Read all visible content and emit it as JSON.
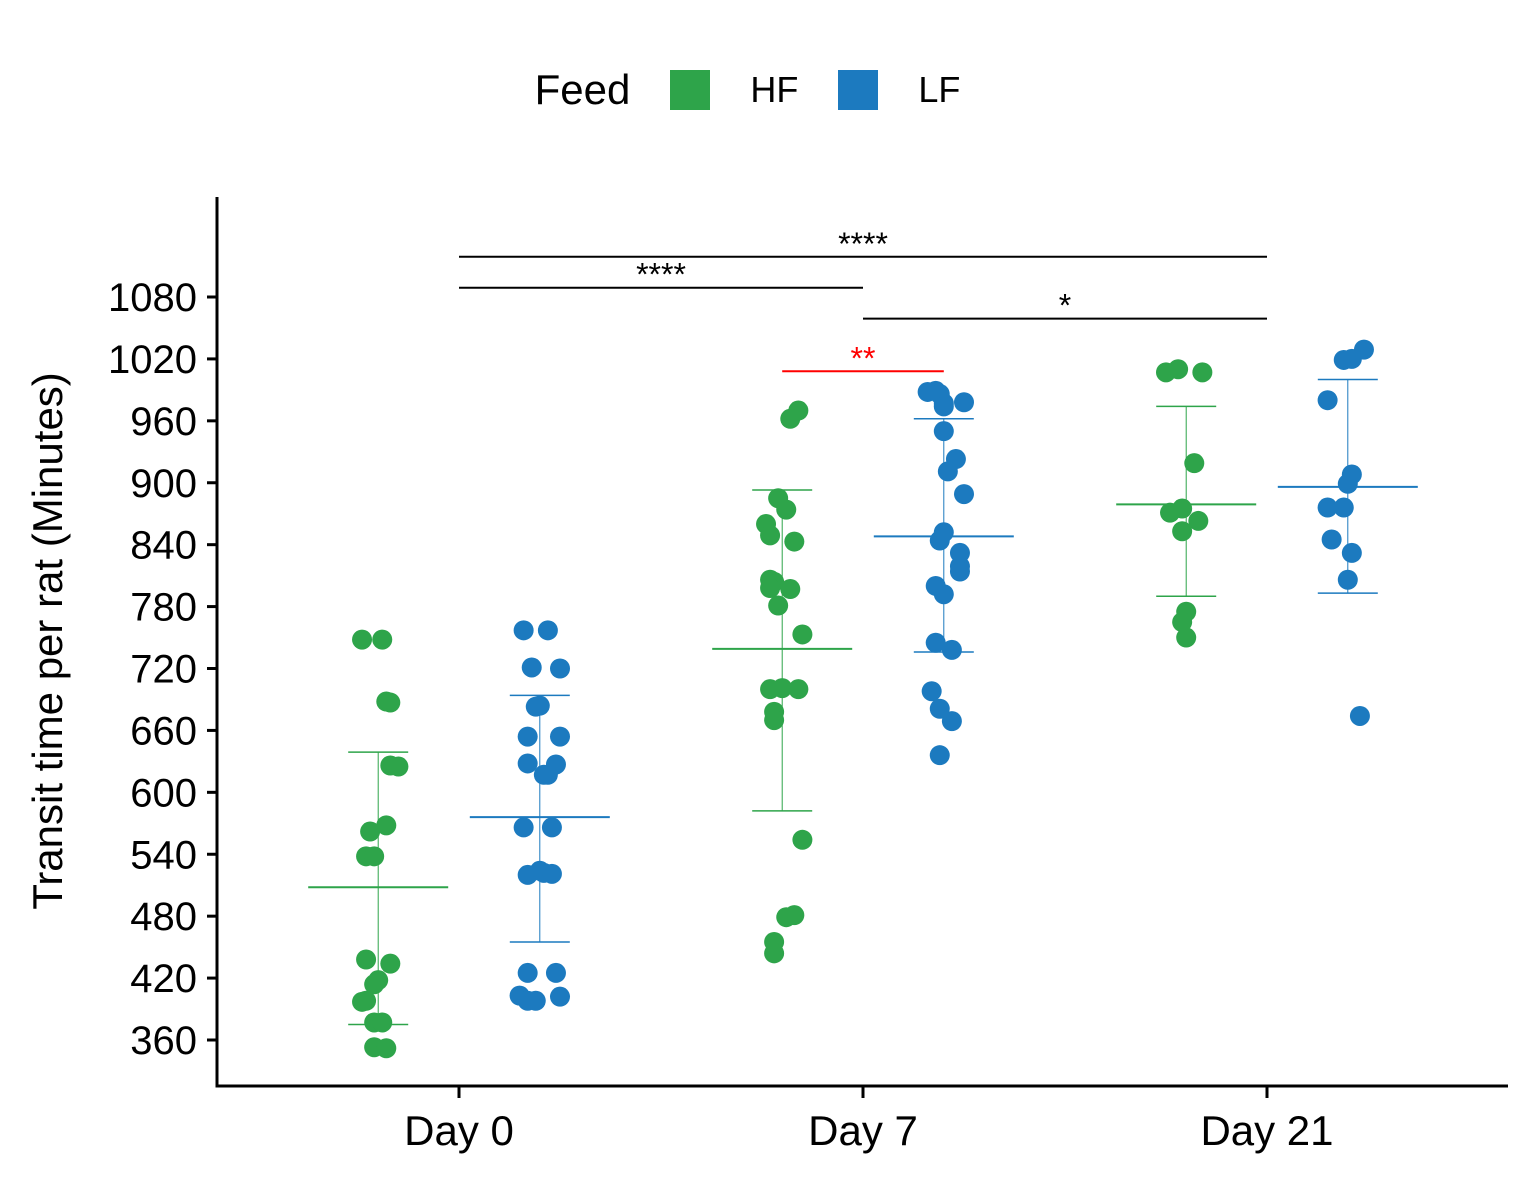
{
  "chart_data": {
    "type": "scatter",
    "ylabel": "Transit time per rat (Minutes)",
    "xlabel": "",
    "categories": [
      "Day 0",
      "Day 7",
      "Day 21"
    ],
    "yticks": [
      360,
      420,
      480,
      540,
      600,
      660,
      720,
      780,
      840,
      900,
      960,
      1020,
      1080
    ],
    "ylim": [
      315,
      1200
    ],
    "legend": {
      "title": "Feed",
      "placement": "top"
    },
    "series": [
      {
        "name": "HF",
        "color": "#2ea44a",
        "groups": [
          {
            "category": "Day 0",
            "mean": 508,
            "sd_low": 375,
            "sd_high": 639,
            "points": [
              [
                -0.24,
                748
              ],
              [
                -0.19,
                748
              ],
              [
                -0.18,
                688
              ],
              [
                -0.17,
                687
              ],
              [
                -0.17,
                626
              ],
              [
                -0.15,
                625
              ],
              [
                -0.18,
                568
              ],
              [
                -0.22,
                562
              ],
              [
                -0.23,
                538
              ],
              [
                -0.21,
                538
              ],
              [
                -0.23,
                438
              ],
              [
                -0.17,
                434
              ],
              [
                -0.2,
                418
              ],
              [
                -0.21,
                414
              ],
              [
                -0.23,
                398
              ],
              [
                -0.24,
                397
              ],
              [
                -0.21,
                377
              ],
              [
                -0.19,
                377
              ],
              [
                -0.21,
                353
              ],
              [
                -0.18,
                352
              ]
            ]
          },
          {
            "category": "Day 7",
            "mean": 739,
            "sd_low": 582,
            "sd_high": 893,
            "points": [
              [
                -0.16,
                970
              ],
              [
                -0.18,
                962
              ],
              [
                -0.21,
                885
              ],
              [
                -0.19,
                874
              ],
              [
                -0.24,
                860
              ],
              [
                -0.23,
                849
              ],
              [
                -0.17,
                843
              ],
              [
                -0.23,
                806
              ],
              [
                -0.22,
                804
              ],
              [
                -0.23,
                798
              ],
              [
                -0.18,
                797
              ],
              [
                -0.21,
                781
              ],
              [
                -0.15,
                753
              ],
              [
                -0.23,
                700
              ],
              [
                -0.2,
                701
              ],
              [
                -0.16,
                700
              ],
              [
                -0.22,
                678
              ],
              [
                -0.22,
                670
              ],
              [
                -0.15,
                554
              ],
              [
                -0.17,
                481
              ],
              [
                -0.19,
                479
              ],
              [
                -0.22,
                455
              ],
              [
                -0.22,
                444
              ]
            ]
          },
          {
            "category": "Day 21",
            "mean": 879,
            "sd_low": 790,
            "sd_high": 974,
            "points": [
              [
                -0.25,
                1007
              ],
              [
                -0.22,
                1010
              ],
              [
                -0.16,
                1007
              ],
              [
                -0.18,
                919
              ],
              [
                -0.21,
                875
              ],
              [
                -0.24,
                871
              ],
              [
                -0.17,
                863
              ],
              [
                -0.21,
                853
              ],
              [
                -0.2,
                775
              ],
              [
                -0.21,
                765
              ],
              [
                -0.2,
                750
              ]
            ]
          }
        ]
      },
      {
        "name": "LF",
        "color": "#1c7abf",
        "groups": [
          {
            "category": "Day 0",
            "mean": 576,
            "sd_low": 455,
            "sd_high": 694,
            "points": [
              [
                0.16,
                757
              ],
              [
                0.22,
                757
              ],
              [
                0.18,
                721
              ],
              [
                0.25,
                720
              ],
              [
                0.2,
                684
              ],
              [
                0.19,
                683
              ],
              [
                0.17,
                654
              ],
              [
                0.25,
                654
              ],
              [
                0.17,
                628
              ],
              [
                0.24,
                627
              ],
              [
                0.21,
                617
              ],
              [
                0.22,
                617
              ],
              [
                0.23,
                566
              ],
              [
                0.16,
                566
              ],
              [
                0.2,
                524
              ],
              [
                0.21,
                522
              ],
              [
                0.23,
                521
              ],
              [
                0.17,
                520
              ],
              [
                0.17,
                425
              ],
              [
                0.24,
                425
              ],
              [
                0.15,
                403
              ],
              [
                0.17,
                398
              ],
              [
                0.19,
                398
              ],
              [
                0.25,
                402
              ]
            ]
          },
          {
            "category": "Day 7",
            "mean": 848,
            "sd_low": 736,
            "sd_high": 962,
            "points": [
              [
                0.16,
                988
              ],
              [
                0.18,
                989
              ],
              [
                0.19,
                986
              ],
              [
                0.2,
                977
              ],
              [
                0.2,
                974
              ],
              [
                0.25,
                978
              ],
              [
                0.2,
                950
              ],
              [
                0.23,
                923
              ],
              [
                0.21,
                911
              ],
              [
                0.25,
                889
              ],
              [
                0.2,
                852
              ],
              [
                0.19,
                844
              ],
              [
                0.24,
                832
              ],
              [
                0.24,
                819
              ],
              [
                0.24,
                814
              ],
              [
                0.18,
                800
              ],
              [
                0.2,
                792
              ],
              [
                0.18,
                745
              ],
              [
                0.22,
                738
              ],
              [
                0.17,
                698
              ],
              [
                0.19,
                681
              ],
              [
                0.22,
                669
              ],
              [
                0.19,
                636
              ]
            ]
          },
          {
            "category": "Day 21",
            "mean": 896,
            "sd_low": 793,
            "sd_high": 1000,
            "points": [
              [
                0.21,
                1020
              ],
              [
                0.19,
                1019
              ],
              [
                0.24,
                1029
              ],
              [
                0.15,
                980
              ],
              [
                0.21,
                908
              ],
              [
                0.2,
                899
              ],
              [
                0.15,
                876
              ],
              [
                0.19,
                876
              ],
              [
                0.16,
                845
              ],
              [
                0.21,
                832
              ],
              [
                0.2,
                806
              ],
              [
                0.23,
                674
              ]
            ]
          }
        ]
      }
    ],
    "annotations": [
      {
        "from": "Day 0",
        "to": "Day 21",
        "y": 1119,
        "label": "****",
        "color": "#000000"
      },
      {
        "from": "Day 0",
        "to": "Day 7",
        "y": 1089,
        "label": "****",
        "color": "#000000"
      },
      {
        "from": "Day 7",
        "to": "Day 21",
        "y": 1059,
        "label": "*",
        "color": "#000000"
      },
      {
        "from": "Day 7",
        "to": "Day 7",
        "from_offset": -0.2,
        "to_offset": 0.2,
        "y": 1008,
        "label": "**",
        "color": "#ff0000"
      }
    ]
  }
}
